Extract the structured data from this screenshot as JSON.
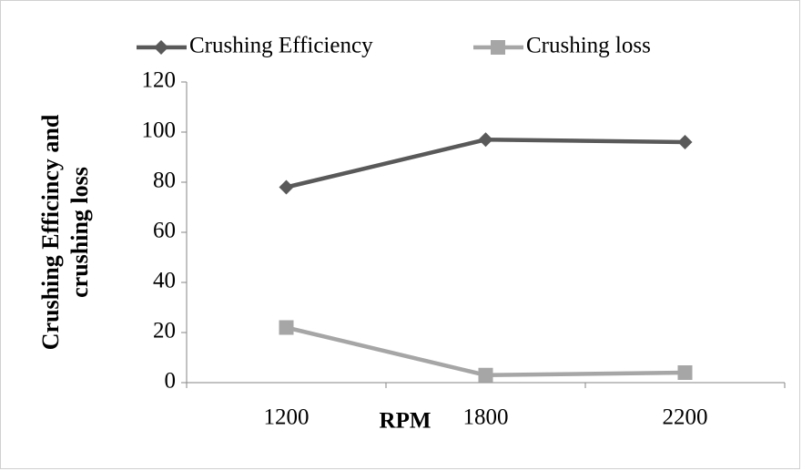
{
  "chart_data": {
    "type": "line",
    "categories": [
      "1200",
      "1800",
      "2200"
    ],
    "series": [
      {
        "name": "Crushing Efficiency",
        "color": "#595959",
        "marker": "diamond",
        "values": [
          78,
          97,
          96
        ]
      },
      {
        "name": "Crushing loss",
        "color": "#a6a6a6",
        "marker": "square",
        "values": [
          22,
          3,
          4
        ]
      }
    ],
    "xlabel": "RPM",
    "ylabel": [
      "Crushing Efficincy and",
      "crushing loss"
    ],
    "ylim": [
      0,
      120
    ],
    "yticks": [
      0,
      20,
      40,
      60,
      80,
      100,
      120
    ],
    "legend": "top"
  }
}
